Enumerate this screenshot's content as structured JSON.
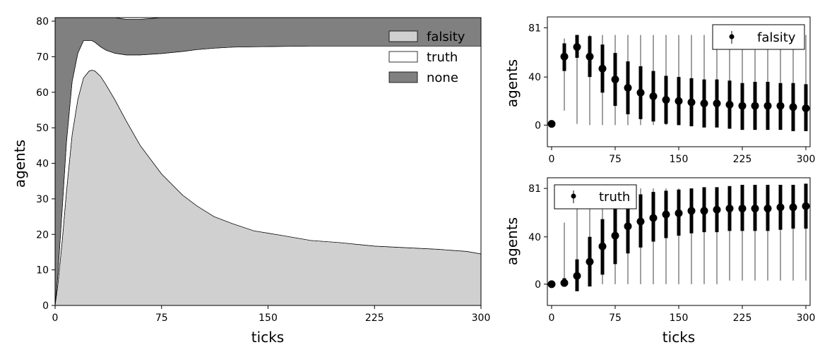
{
  "chart_data": [
    {
      "type": "area",
      "stacked": true,
      "xlabel": "ticks",
      "ylabel": "agents",
      "xlim": [
        0,
        300
      ],
      "ylim": [
        0,
        81
      ],
      "xticks": [
        "0",
        "75",
        "150",
        "225",
        "300"
      ],
      "yticks": [
        "0",
        "10",
        "20",
        "30",
        "40",
        "50",
        "60",
        "70",
        "80"
      ],
      "x": [
        0,
        2,
        5,
        8,
        12,
        16,
        20,
        24,
        26,
        28,
        32,
        36,
        42,
        50,
        60,
        75,
        90,
        100,
        112,
        125,
        140,
        160,
        180,
        200,
        225,
        250,
        270,
        290,
        300
      ],
      "series": [
        {
          "name": "falsity",
          "color": "#d0d0d0",
          "values": [
            0,
            6,
            18,
            32,
            48,
            58,
            64,
            66,
            66.2,
            66,
            64.5,
            62,
            58,
            52,
            45,
            37,
            31,
            28,
            25,
            23,
            21,
            19.7,
            18.3,
            17.7,
            16.7,
            16.2,
            15.8,
            15.2,
            14.5
          ]
        },
        {
          "name": "truth",
          "color": "#ffffff",
          "values": [
            0,
            3,
            9,
            14,
            15,
            13,
            10.5,
            8.5,
            8.3,
            8.1,
            8.3,
            9.8,
            13,
            18.5,
            25.5,
            33.9,
            40.5,
            44,
            47.4,
            49.7,
            51.8,
            53.2,
            54.7,
            55.3,
            56.3,
            56.8,
            57.2,
            57.8,
            58.5
          ]
        },
        {
          "name": "none",
          "color": "#808080",
          "values": [
            81,
            72,
            54,
            35,
            18,
            10,
            6.5,
            6.5,
            6.5,
            6.9,
            8.2,
            9.2,
            10,
            10,
            10,
            10.1,
            9.5,
            9,
            8.6,
            8.3,
            8.2,
            8.1,
            8,
            8,
            8,
            8,
            8,
            8,
            8
          ]
        }
      ],
      "legend": [
        "falsity",
        "truth",
        "none"
      ],
      "legend_position": "upper-right",
      "grid": false
    },
    {
      "type": "errorbar",
      "xlabel": "",
      "ylabel": "agents",
      "xlim": [
        -5,
        305
      ],
      "ylim": [
        -18,
        90
      ],
      "xticks": [
        "0",
        "75",
        "150",
        "225",
        "300"
      ],
      "yticks": [
        "0",
        "40",
        "81"
      ],
      "series": [
        {
          "name": "falsity",
          "x": [
            0,
            15,
            30,
            45,
            60,
            75,
            90,
            105,
            120,
            135,
            150,
            165,
            180,
            195,
            210,
            225,
            240,
            255,
            270,
            285,
            300
          ],
          "mean": [
            1,
            57,
            65,
            57,
            47,
            38,
            31,
            27,
            24,
            21,
            20,
            19,
            18,
            18,
            17,
            16,
            16,
            16,
            16,
            15,
            14
          ],
          "std_low": [
            1,
            45,
            56,
            40,
            27,
            16,
            9,
            5,
            3,
            1,
            0,
            -1,
            -2,
            -2,
            -3,
            -4,
            -4,
            -4,
            -4,
            -5,
            -5
          ],
          "std_high": [
            1,
            68,
            75,
            74,
            67,
            60,
            53,
            49,
            45,
            41,
            40,
            39,
            38,
            38,
            37,
            35,
            36,
            36,
            35,
            35,
            34
          ],
          "min": [
            0,
            12,
            1,
            0,
            0,
            0,
            0,
            0,
            0,
            0,
            0,
            0,
            0,
            0,
            0,
            0,
            0,
            0,
            0,
            0,
            0
          ],
          "max": [
            1,
            72,
            75,
            75,
            75,
            75,
            75,
            75,
            75,
            75,
            75,
            75,
            75,
            75,
            75,
            75,
            75,
            75,
            75,
            75,
            75
          ]
        }
      ],
      "legend": [
        "falsity"
      ],
      "legend_position": "upper-right",
      "grid": false
    },
    {
      "type": "errorbar",
      "xlabel": "ticks",
      "ylabel": "agents",
      "xlim": [
        -5,
        305
      ],
      "ylim": [
        -18,
        90
      ],
      "xticks": [
        "0",
        "75",
        "150",
        "225",
        "300"
      ],
      "yticks": [
        "0",
        "40",
        "81"
      ],
      "series": [
        {
          "name": "truth",
          "x": [
            0,
            15,
            30,
            45,
            60,
            75,
            90,
            105,
            120,
            135,
            150,
            165,
            180,
            195,
            210,
            225,
            240,
            255,
            270,
            285,
            300
          ],
          "mean": [
            0,
            1,
            7,
            19,
            32,
            41,
            49,
            53,
            56,
            59,
            60,
            62,
            62,
            63,
            64,
            64,
            64,
            64,
            65,
            65,
            66
          ],
          "std_low": [
            0,
            -2,
            -6,
            -2,
            8,
            17,
            26,
            31,
            36,
            39,
            41,
            43,
            44,
            44,
            45,
            45,
            45,
            45,
            46,
            47,
            47
          ],
          "std_high": [
            0,
            5,
            21,
            40,
            55,
            66,
            72,
            76,
            78,
            79,
            80,
            81,
            82,
            82,
            83,
            84,
            84,
            84,
            84,
            84,
            85
          ],
          "min": [
            0,
            0,
            0,
            0,
            0,
            0,
            0,
            0,
            0,
            0,
            0,
            0,
            0,
            0,
            3,
            3,
            3,
            3,
            3,
            3,
            3
          ],
          "max": [
            0,
            52,
            66,
            75,
            80,
            80,
            81,
            81,
            81,
            81,
            81,
            81,
            81,
            81,
            81,
            81,
            81,
            81,
            81,
            81,
            81
          ]
        }
      ],
      "legend": [
        "truth"
      ],
      "legend_position": "upper-left",
      "grid": false
    }
  ]
}
